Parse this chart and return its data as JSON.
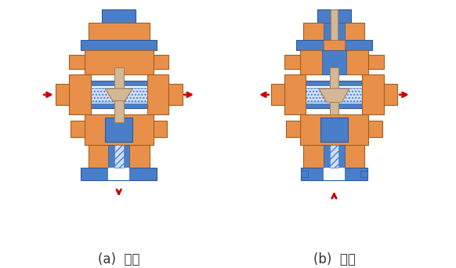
{
  "title": "",
  "label_a": "(a)  分流",
  "label_b": "(b)  合流",
  "orange_color": "#E8904A",
  "blue_color": "#4A7EC8",
  "tan_color": "#D4B896",
  "white_color": "#FFFFFF",
  "red_color": "#CC0000",
  "hatch_color": "#4A7EC8",
  "bg_color": "#FFFFFF",
  "label_fontsize": 12,
  "fig_width": 5.82,
  "fig_height": 3.42,
  "dpi": 100
}
